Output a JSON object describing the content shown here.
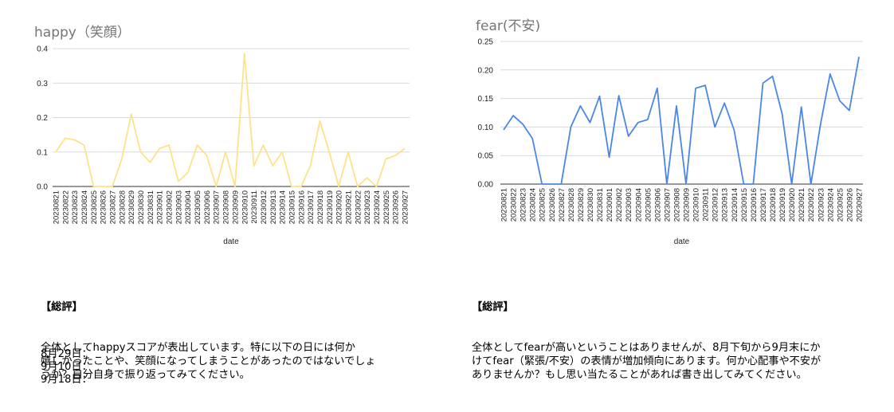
{
  "chart_data": [
    {
      "type": "line",
      "title": "happy（笑顔）",
      "xlabel": "date",
      "ylabel": "",
      "ylim": [
        0,
        0.4
      ],
      "yticks": [
        "0.0",
        "0.1",
        "0.2",
        "0.3",
        "0.4"
      ],
      "color": "#fce38a",
      "categories": [
        "20230821",
        "20230822",
        "20230823",
        "20230824",
        "20230825",
        "20230826",
        "20230827",
        "20230828",
        "20230829",
        "20230830",
        "20230831",
        "20230901",
        "20230902",
        "20230903",
        "20230904",
        "20230905",
        "20230906",
        "20230907",
        "20230908",
        "20230909",
        "20230910",
        "20230911",
        "20230912",
        "20230913",
        "20230914",
        "20230915",
        "20230916",
        "20230917",
        "20230918",
        "20230919",
        "20230920",
        "20230921",
        "20230922",
        "20230923",
        "20230924",
        "20230925",
        "20230926",
        "20230927"
      ],
      "values": [
        0.1,
        0.14,
        0.135,
        0.12,
        0.0,
        0.0,
        0.0,
        0.08,
        0.21,
        0.1,
        0.07,
        0.11,
        0.12,
        0.015,
        0.04,
        0.12,
        0.09,
        0.0,
        0.1,
        0.0,
        0.385,
        0.06,
        0.12,
        0.06,
        0.1,
        0.0,
        0.0,
        0.06,
        0.19,
        0.1,
        0.0,
        0.1,
        0.0,
        0.025,
        0.0,
        0.08,
        0.09,
        0.11
      ]
    },
    {
      "type": "line",
      "title": "fear(不安)",
      "xlabel": "date",
      "ylabel": "",
      "ylim": [
        0,
        0.25
      ],
      "yticks": [
        "0.00",
        "0.05",
        "0.10",
        "0.15",
        "0.20",
        "0.25"
      ],
      "color": "#4a86e8",
      "categories": [
        "20230821",
        "20230822",
        "20230823",
        "20230824",
        "20230825",
        "20230826",
        "20230827",
        "20230828",
        "20230829",
        "20230830",
        "20230831",
        "20230901",
        "20230902",
        "20230903",
        "20230904",
        "20230905",
        "20230906",
        "20230907",
        "20230908",
        "20230909",
        "20230910",
        "20230911",
        "20230912",
        "20230913",
        "20230914",
        "20230915",
        "20230916",
        "20230917",
        "20230918",
        "20230919",
        "20230920",
        "20230921",
        "20230922",
        "20230923",
        "20230924",
        "20230925",
        "20230926",
        "20230927"
      ],
      "values": [
        0.095,
        0.12,
        0.105,
        0.08,
        0.0,
        0.0,
        0.0,
        0.1,
        0.137,
        0.108,
        0.154,
        0.047,
        0.155,
        0.084,
        0.108,
        0.113,
        0.168,
        0.0,
        0.137,
        0.0,
        0.168,
        0.173,
        0.1,
        0.142,
        0.095,
        0.0,
        0.0,
        0.177,
        0.189,
        0.123,
        0.0,
        0.135,
        0.0,
        0.105,
        0.193,
        0.146,
        0.129,
        0.223
      ]
    }
  ],
  "left_comment": {
    "heading": "【総評】",
    "body": "全体としてhappyスコアが表出しています。特に以下の日には何か\n嬉しかったことや、笑顔になってしまうことがあったのではないでしょ\nうか？自分自身で振り返ってみてください。",
    "dates": [
      "8月29日：",
      "9月10日：",
      "9月18日："
    ]
  },
  "right_comment": {
    "heading": "【総評】",
    "body": "全体としてfearが高いということはありませんが、8月下旬から9月末にか\nけてfear（緊張/不安）の表情が増加傾向にあります。何か心配事や不安が\nありませんか？もし思い当たることがあれば書き出してみてください。"
  }
}
